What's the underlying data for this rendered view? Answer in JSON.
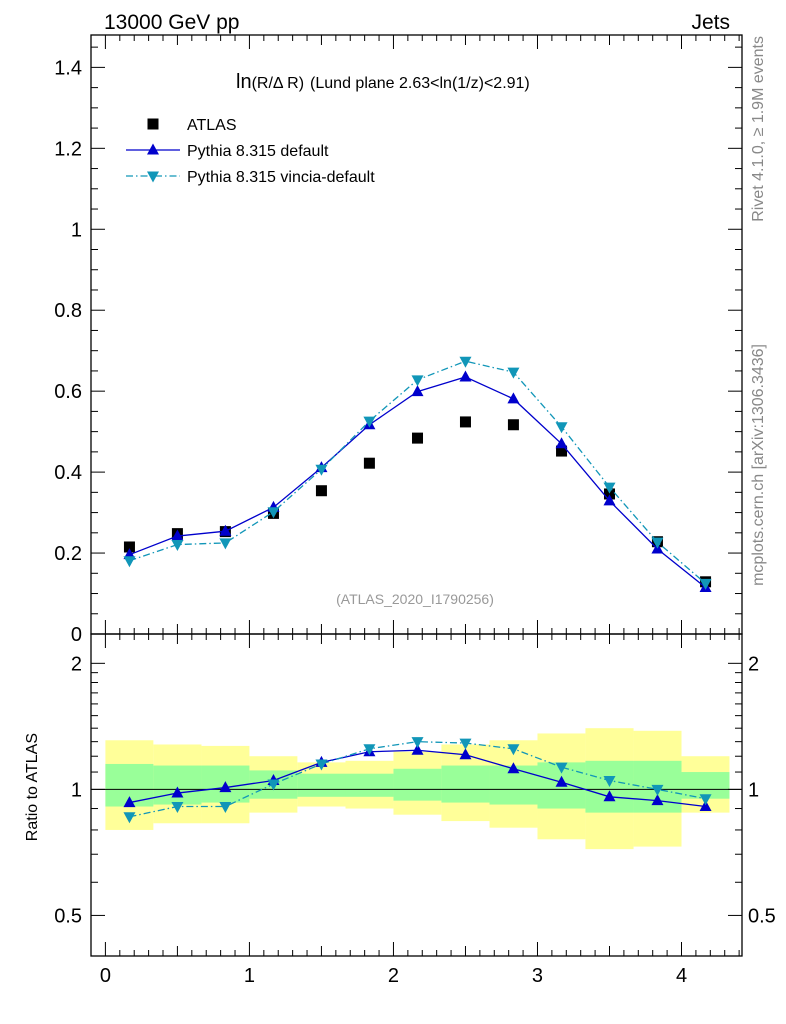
{
  "header": {
    "process": "13000 GeV pp",
    "category": "Jets",
    "side_top": "Rivet 4.1.0, ≥ 1.9M events",
    "side_bottom": "mcplots.cern.ch [arXiv:1306.3436]"
  },
  "chart_data": [
    {
      "type": "scatter",
      "panel": "main",
      "title": "ln(R/Δ R) (Lund plane 2.63<ln(1/z)<2.91)",
      "title_prefix": "ln",
      "title_main": "(R/Δ R)",
      "title_suffix": "(Lund plane 2.63<ln(1/z)<2.91)",
      "watermark": "(ATLAS_2020_I1790256)",
      "xlabel": "",
      "ylabel": "",
      "xlim": [
        -0.1,
        4.42
      ],
      "ylim": [
        0,
        1.48
      ],
      "x_ticks": [
        0,
        1,
        2,
        3,
        4
      ],
      "y_ticks": [
        0,
        0.2,
        0.4,
        0.6,
        0.8,
        1,
        1.2,
        1.4
      ],
      "y_tick_labels": [
        "0",
        "0.2",
        "0.4",
        "0.6",
        "0.8",
        "1",
        "1.2",
        "1.4"
      ],
      "legend_position": "top-left",
      "x": [
        0.167,
        0.5,
        0.833,
        1.167,
        1.5,
        1.833,
        2.167,
        2.5,
        2.833,
        3.167,
        3.5,
        3.833,
        4.167
      ],
      "series": [
        {
          "name": "ATLAS",
          "marker": "square",
          "color": "#000000",
          "line": "none",
          "values": [
            0.215,
            0.248,
            0.253,
            0.298,
            0.354,
            0.422,
            0.484,
            0.524,
            0.517,
            0.452,
            0.346,
            0.228,
            0.129
          ]
        },
        {
          "name": "Pythia 8.315 default",
          "marker": "triangle-up",
          "color": "#0000cc",
          "line": "solid",
          "values": [
            0.196,
            0.242,
            0.254,
            0.313,
            0.411,
            0.517,
            0.599,
            0.635,
            0.581,
            0.47,
            0.329,
            0.21,
            0.115
          ]
        },
        {
          "name": "Pythia 8.315 vincia-default",
          "marker": "triangle-down",
          "color": "#1196b8",
          "line": "dash-dot",
          "values": [
            0.181,
            0.221,
            0.225,
            0.302,
            0.407,
            0.526,
            0.628,
            0.674,
            0.647,
            0.512,
            0.363,
            0.227,
            0.125
          ]
        }
      ]
    },
    {
      "type": "line",
      "panel": "ratio",
      "ylabel": "Ratio to ATLAS",
      "ylim": [
        0.4,
        2.35
      ],
      "yscale": "log",
      "x_ticks": [
        0,
        1,
        2,
        3,
        4
      ],
      "x_tick_labels": [
        "0",
        "1",
        "2",
        "3",
        "4"
      ],
      "y_ticks": [
        0.5,
        1,
        2
      ],
      "y_tick_labels": [
        "0.5",
        "1",
        "2"
      ],
      "x": [
        0.167,
        0.5,
        0.833,
        1.167,
        1.5,
        1.833,
        2.167,
        2.5,
        2.833,
        3.167,
        3.5,
        3.833,
        4.167
      ],
      "bin_edges": [
        0,
        0.333,
        0.667,
        1.0,
        1.333,
        1.667,
        2.0,
        2.333,
        2.667,
        3.0,
        3.333,
        3.667,
        4.0,
        4.333
      ],
      "band_stat": {
        "name": "stat band",
        "color": "#99ff99",
        "low": [
          0.91,
          0.92,
          0.93,
          0.95,
          0.96,
          0.96,
          0.94,
          0.93,
          0.92,
          0.9,
          0.88,
          0.88,
          0.95
        ],
        "high": [
          1.15,
          1.14,
          1.14,
          1.11,
          1.09,
          1.09,
          1.12,
          1.14,
          1.14,
          1.16,
          1.17,
          1.17,
          1.1
        ]
      },
      "band_total": {
        "name": "total band",
        "color": "#ffff99",
        "low": [
          0.8,
          0.83,
          0.83,
          0.88,
          0.91,
          0.9,
          0.87,
          0.84,
          0.81,
          0.76,
          0.72,
          0.73,
          0.88
        ],
        "high": [
          1.31,
          1.28,
          1.27,
          1.2,
          1.16,
          1.17,
          1.23,
          1.28,
          1.31,
          1.36,
          1.4,
          1.38,
          1.2
        ]
      },
      "series": [
        {
          "name": "Pythia 8.315 default",
          "marker": "triangle-up",
          "color": "#0000cc",
          "line": "solid",
          "values": [
            0.93,
            0.98,
            1.01,
            1.05,
            1.16,
            1.23,
            1.24,
            1.21,
            1.12,
            1.04,
            0.96,
            0.94,
            0.91
          ]
        },
        {
          "name": "Pythia 8.315 vincia-default",
          "marker": "triangle-down",
          "color": "#1196b8",
          "line": "dash-dot",
          "values": [
            0.86,
            0.91,
            0.91,
            1.03,
            1.15,
            1.25,
            1.3,
            1.29,
            1.25,
            1.13,
            1.05,
            1.0,
            0.95
          ]
        }
      ]
    }
  ]
}
